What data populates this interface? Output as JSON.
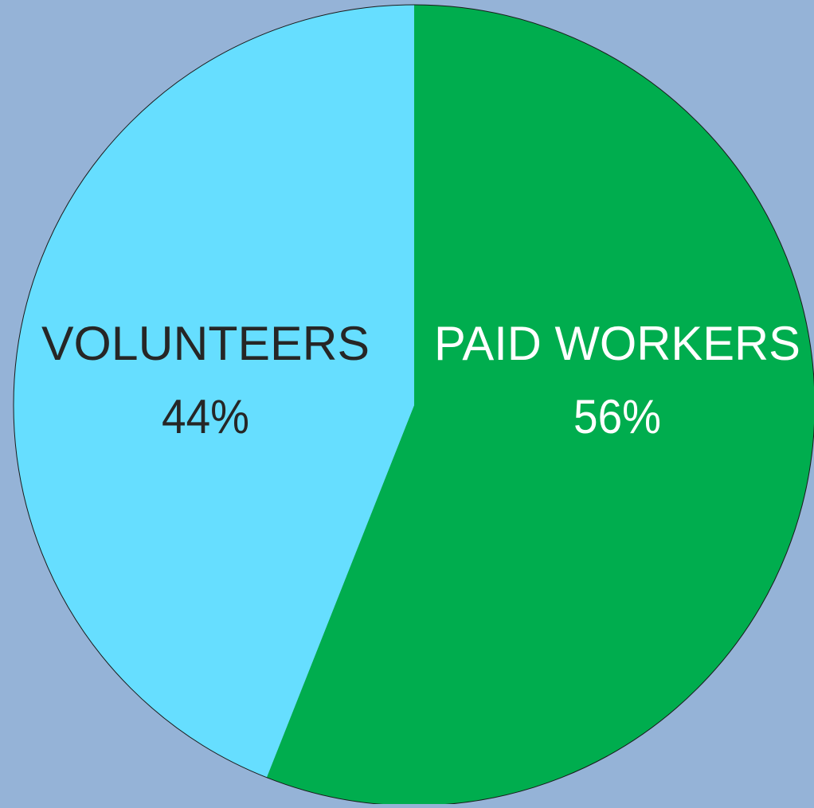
{
  "background_color": "#95B3D7",
  "chart_data": {
    "type": "pie",
    "title": "",
    "slices": [
      {
        "label": "PAID WORKERS",
        "value": 56,
        "value_label": "56%",
        "color": "#00AD4E",
        "label_color": "#FFFFFF"
      },
      {
        "label": "VOLUNTEERS",
        "value": 44,
        "value_label": "44%",
        "color": "#66DEFF",
        "label_color": "#262626"
      }
    ],
    "start_angle": "12 o'clock",
    "direction": "clockwise",
    "legend": "none"
  }
}
